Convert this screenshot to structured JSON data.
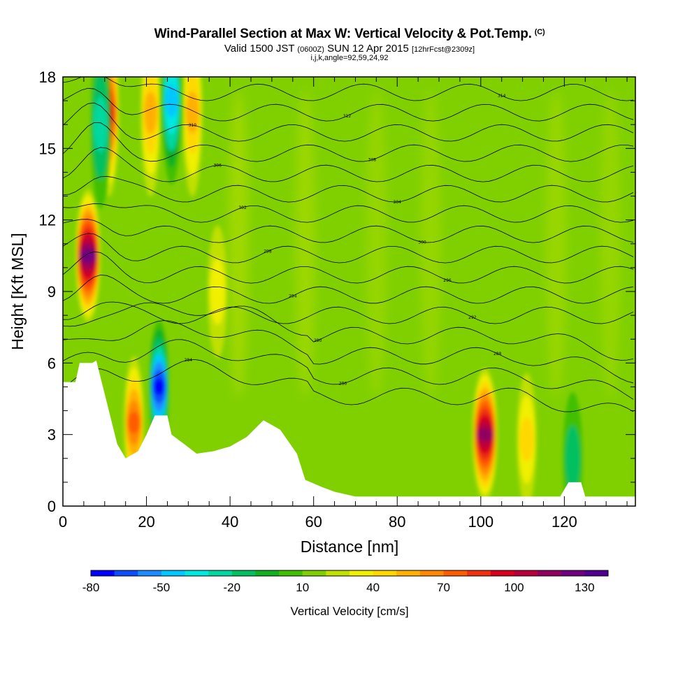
{
  "header": {
    "title": "Wind-Parallel Section at Max W: Vertical Velocity & Pot.Temp.",
    "title_mark": "(C)",
    "valid_prefix": "Valid 1500 JST",
    "valid_zulu": "(0600Z)",
    "valid_date": "SUN 12 Apr 2015",
    "forecast_info": "[12hrFcst@2309z]",
    "indices": "i,j,k,angle=92,59,24,92"
  },
  "chart_data": {
    "type": "heatmap",
    "xlabel": "Distance [nm]",
    "ylabel": "Height [Kft MSL]",
    "xlim": [
      0,
      137
    ],
    "ylim": [
      0,
      18
    ],
    "x_ticks": [
      "0",
      "20",
      "40",
      "60",
      "80",
      "100",
      "120"
    ],
    "y_ticks": [
      "0",
      "3",
      "6",
      "9",
      "12",
      "15",
      "18"
    ],
    "background_level": 10,
    "updraft_features": [
      {
        "x": 6,
        "y": 10.5,
        "value": 110
      },
      {
        "x": 11,
        "y": 16.5,
        "value": 70
      },
      {
        "x": 17,
        "y": 3.5,
        "value": 60
      },
      {
        "x": 21,
        "y": 16.5,
        "value": 40
      },
      {
        "x": 31,
        "y": 16.5,
        "value": 40
      },
      {
        "x": 101,
        "y": 3,
        "value": 100
      },
      {
        "x": 111,
        "y": 2.8,
        "value": 30
      },
      {
        "x": 37,
        "y": 9,
        "value": 20
      }
    ],
    "downdraft_features": [
      {
        "x": 9,
        "y": 16,
        "value": -30
      },
      {
        "x": 23,
        "y": 5,
        "value": -80
      },
      {
        "x": 26,
        "y": 17,
        "value": -50
      },
      {
        "x": 122,
        "y": 2,
        "value": -20
      }
    ],
    "isentrope_labels": [
      "284",
      "286",
      "288",
      "290",
      "292",
      "294",
      "296",
      "298",
      "300",
      "302",
      "304",
      "306",
      "308",
      "310",
      "312",
      "314"
    ],
    "colorbar": {
      "title": "Vertical Velocity [cm/s]",
      "min": -80,
      "step": 10,
      "tick_labels": [
        "-80",
        "-50",
        "-20",
        "10",
        "40",
        "70",
        "100",
        "130"
      ],
      "colors": [
        "#0000ff",
        "#0d4dfc",
        "#1a8cff",
        "#00c8ff",
        "#00e8e0",
        "#00d8a0",
        "#00c060",
        "#10b020",
        "#40c000",
        "#80d000",
        "#c0e000",
        "#f0f000",
        "#ffd800",
        "#ffb000",
        "#ff8800",
        "#ff5c00",
        "#f03010",
        "#d8001c",
        "#b8003c",
        "#900060",
        "#700080",
        "#500090"
      ]
    }
  }
}
